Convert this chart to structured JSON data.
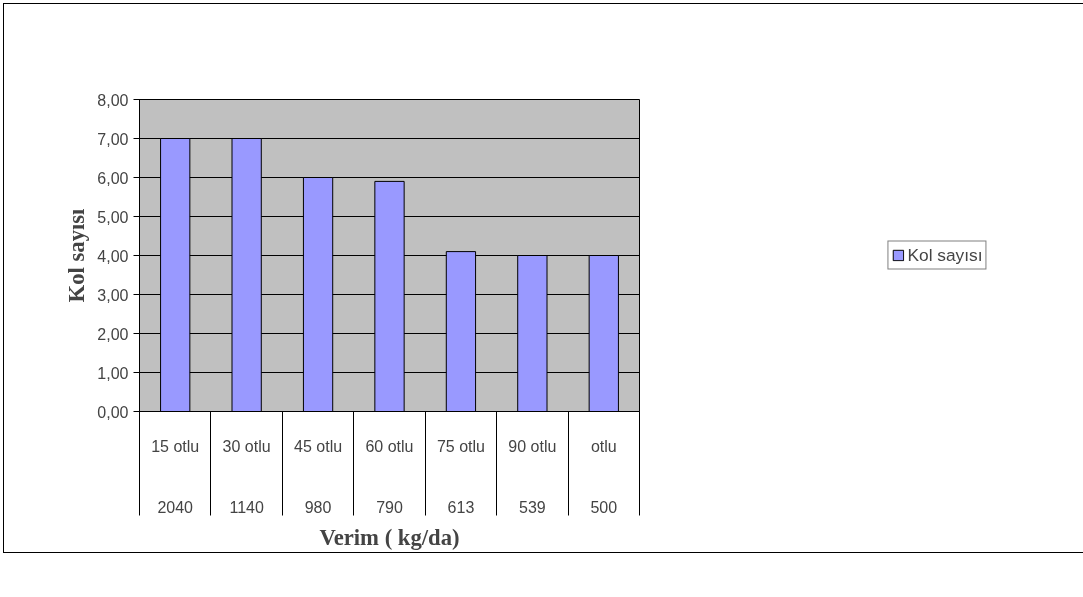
{
  "chart_data": {
    "type": "bar",
    "xlabel": "Verim ( kg/da)",
    "ylabel": "Kol sayısı",
    "categories": [
      "15 otlu\n2040",
      "30 otlu\n1140",
      "45 otlu\n980",
      "60 otlu\n790",
      "75 otlu\n613",
      "90 otlu\n539",
      "otlu\n500"
    ],
    "series": [
      {
        "name": "Kol sayısı",
        "color": "#9999ff",
        "values": [
          7.0,
          7.0,
          6.0,
          5.9,
          4.1,
          4.0,
          4.0
        ]
      }
    ],
    "ylim": [
      0,
      8
    ],
    "yticks": [
      {
        "value": 0,
        "label": "0,00"
      },
      {
        "value": 1,
        "label": "1,00"
      },
      {
        "value": 2,
        "label": "2,00"
      },
      {
        "value": 3,
        "label": "3,00"
      },
      {
        "value": 4,
        "label": "4,00"
      },
      {
        "value": 5,
        "label": "5,00"
      },
      {
        "value": 6,
        "label": "6,00"
      },
      {
        "value": 7,
        "label": "7,00"
      },
      {
        "value": 8,
        "label": "8,00"
      }
    ],
    "grid": "y",
    "legend": "right"
  }
}
